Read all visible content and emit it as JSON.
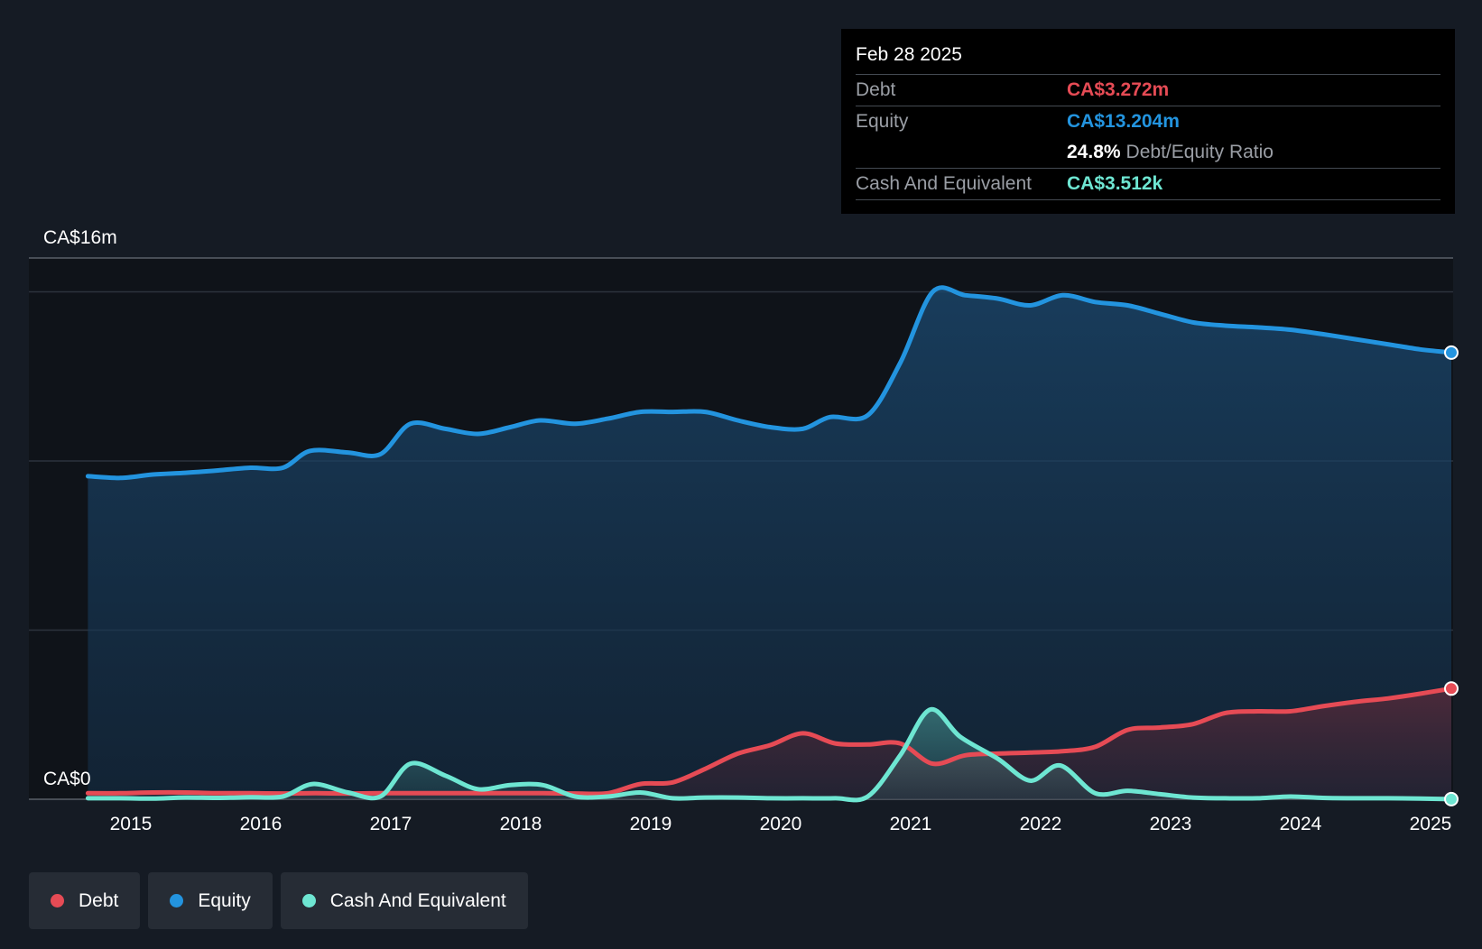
{
  "colors": {
    "debt": "#e64b55",
    "equity": "#2394df",
    "cash": "#6ee6d2",
    "background": "#151b24",
    "plot_background": "#0f1319",
    "grid": "#2c333d"
  },
  "tooltip": {
    "date": "Feb 28 2025",
    "rows": [
      {
        "label": "Debt",
        "value": "CA$3.272m"
      },
      {
        "label": "Equity",
        "value": "CA$13.204m"
      },
      {
        "label": "",
        "value": "24.8%",
        "suffix": "Debt/Equity Ratio"
      },
      {
        "label": "Cash And Equivalent",
        "value": "CA$3.512k"
      }
    ]
  },
  "legend": [
    {
      "label": "Debt",
      "icon": "debt-dot-icon"
    },
    {
      "label": "Equity",
      "icon": "equity-dot-icon"
    },
    {
      "label": "Cash And Equivalent",
      "icon": "cash-dot-icon"
    }
  ],
  "chart_data": {
    "type": "area",
    "title": "",
    "xlabel": "",
    "ylabel": "",
    "y_top_label": "CA$16m",
    "y_bottom_label": "CA$0",
    "ylim": [
      0,
      16
    ],
    "xlim": [
      2014.66,
      2025.16
    ],
    "grid": true,
    "x_ticks": [
      2015,
      2016,
      2017,
      2018,
      2019,
      2020,
      2021,
      2022,
      2023,
      2024,
      2025
    ],
    "x_tick_labels": [
      "2015",
      "2016",
      "2017",
      "2018",
      "2019",
      "2020",
      "2021",
      "2022",
      "2023",
      "2024",
      "2025"
    ],
    "series": [
      {
        "name": "Equity",
        "x": [
          2014.67,
          2014.92,
          2015.17,
          2015.42,
          2015.67,
          2015.92,
          2016.17,
          2016.38,
          2016.67,
          2016.92,
          2017.15,
          2017.42,
          2017.67,
          2017.92,
          2018.15,
          2018.42,
          2018.67,
          2018.92,
          2019.17,
          2019.42,
          2019.67,
          2019.92,
          2020.17,
          2020.38,
          2020.67,
          2020.92,
          2021.17,
          2021.42,
          2021.67,
          2021.92,
          2022.17,
          2022.42,
          2022.67,
          2022.92,
          2023.17,
          2023.42,
          2023.67,
          2023.92,
          2024.17,
          2024.42,
          2024.67,
          2024.92,
          2025.16
        ],
        "values": [
          9.55,
          9.5,
          9.6,
          9.65,
          9.72,
          9.8,
          9.8,
          10.3,
          10.25,
          10.2,
          11.1,
          10.95,
          10.8,
          11.0,
          11.2,
          11.1,
          11.25,
          11.45,
          11.45,
          11.45,
          11.2,
          11.0,
          10.95,
          11.3,
          11.35,
          12.9,
          15.0,
          14.9,
          14.8,
          14.6,
          14.9,
          14.7,
          14.6,
          14.35,
          14.1,
          14.0,
          13.95,
          13.88,
          13.75,
          13.6,
          13.45,
          13.3,
          13.204
        ]
      },
      {
        "name": "Debt",
        "x": [
          2014.67,
          2014.92,
          2015.17,
          2015.42,
          2015.67,
          2015.92,
          2016.17,
          2016.42,
          2016.67,
          2016.92,
          2017.17,
          2017.42,
          2017.67,
          2017.92,
          2018.17,
          2018.42,
          2018.67,
          2018.92,
          2019.17,
          2019.42,
          2019.67,
          2019.92,
          2020.17,
          2020.42,
          2020.67,
          2020.92,
          2021.17,
          2021.42,
          2021.67,
          2021.92,
          2022.17,
          2022.42,
          2022.67,
          2022.92,
          2023.17,
          2023.42,
          2023.67,
          2023.92,
          2024.17,
          2024.42,
          2024.67,
          2024.92,
          2025.16
        ],
        "values": [
          0.18,
          0.18,
          0.2,
          0.2,
          0.18,
          0.18,
          0.17,
          0.18,
          0.17,
          0.18,
          0.18,
          0.18,
          0.18,
          0.18,
          0.18,
          0.17,
          0.18,
          0.45,
          0.5,
          0.9,
          1.35,
          1.6,
          1.95,
          1.65,
          1.62,
          1.65,
          1.05,
          1.3,
          1.35,
          1.38,
          1.42,
          1.55,
          2.05,
          2.12,
          2.22,
          2.55,
          2.6,
          2.6,
          2.75,
          2.88,
          2.98,
          3.12,
          3.272
        ]
      },
      {
        "name": "Cash And Equivalent",
        "x": [
          2014.67,
          2014.92,
          2015.17,
          2015.42,
          2015.67,
          2015.92,
          2016.17,
          2016.4,
          2016.67,
          2016.92,
          2017.15,
          2017.42,
          2017.67,
          2017.92,
          2018.17,
          2018.42,
          2018.67,
          2018.92,
          2019.17,
          2019.42,
          2019.67,
          2019.92,
          2020.17,
          2020.42,
          2020.67,
          2020.92,
          2021.15,
          2021.38,
          2021.67,
          2021.92,
          2022.15,
          2022.42,
          2022.67,
          2022.92,
          2023.17,
          2023.42,
          2023.67,
          2023.92,
          2024.17,
          2024.42,
          2024.67,
          2024.92,
          2025.16
        ],
        "values": [
          0.03,
          0.03,
          0.02,
          0.05,
          0.04,
          0.06,
          0.08,
          0.45,
          0.2,
          0.08,
          1.05,
          0.7,
          0.3,
          0.42,
          0.42,
          0.08,
          0.08,
          0.2,
          0.03,
          0.05,
          0.05,
          0.03,
          0.03,
          0.03,
          0.08,
          1.3,
          2.65,
          1.85,
          1.2,
          0.55,
          1.0,
          0.18,
          0.25,
          0.15,
          0.05,
          0.03,
          0.03,
          0.08,
          0.04,
          0.03,
          0.03,
          0.02,
          0.0035
        ]
      }
    ]
  }
}
